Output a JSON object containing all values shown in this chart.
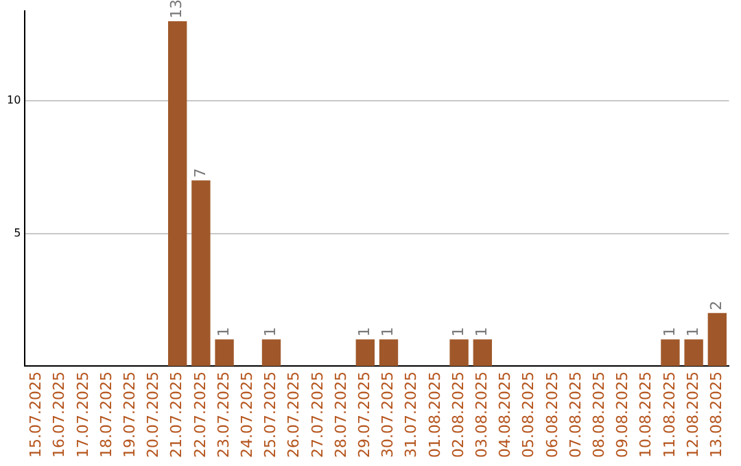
{
  "chart_data": {
    "type": "bar",
    "categories": [
      "15.07.2025",
      "16.07.2025",
      "17.07.2025",
      "18.07.2025",
      "19.07.2025",
      "20.07.2025",
      "21.07.2025",
      "22.07.2025",
      "23.07.2025",
      "24.07.2025",
      "25.07.2025",
      "26.07.2025",
      "27.07.2025",
      "28.07.2025",
      "29.07.2025",
      "30.07.2025",
      "31.07.2025",
      "01.08.2025",
      "02.08.2025",
      "03.08.2025",
      "04.08.2025",
      "05.08.2025",
      "06.08.2025",
      "07.08.2025",
      "08.08.2025",
      "09.08.2025",
      "10.08.2025",
      "11.08.2025",
      "12.08.2025",
      "13.08.2025"
    ],
    "values": [
      0,
      0,
      0,
      0,
      0,
      0,
      13,
      7,
      1,
      0,
      1,
      0,
      0,
      0,
      1,
      1,
      0,
      0,
      1,
      1,
      0,
      0,
      0,
      0,
      0,
      0,
      0,
      1,
      1,
      2
    ],
    "value_labels": [
      null,
      null,
      null,
      null,
      null,
      null,
      "13",
      "7",
      "1",
      null,
      "1",
      null,
      null,
      null,
      "1",
      "1",
      null,
      null,
      "1",
      "1",
      null,
      null,
      null,
      null,
      null,
      null,
      null,
      "1",
      "1",
      "2"
    ],
    "color": "#a0582a",
    "ylim": [
      0,
      13.4
    ],
    "yticks": [
      5,
      10
    ],
    "grid": "y",
    "legend": false
  }
}
